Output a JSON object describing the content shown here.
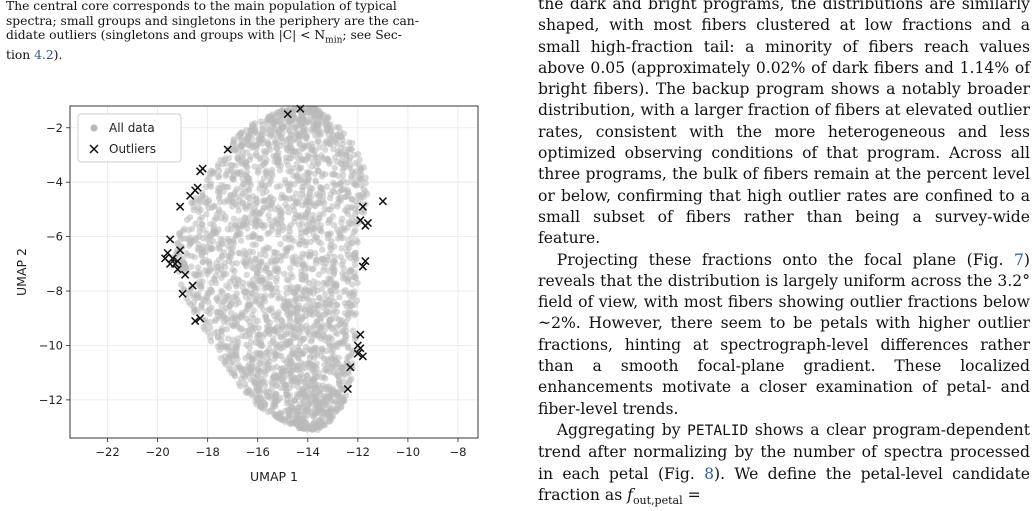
{
  "caption": {
    "line1": "The central core corresponds to the main population of typical",
    "line2": "spectra; small groups and singletons in the periphery are the can-",
    "line3": "didate outliers (singletons and groups with |C| < N",
    "line3_sub": "min",
    "line3_tail": "; see Sec-",
    "line4_pre": "tion ",
    "line4_ref": "4.2",
    "line4_post": ")."
  },
  "body": {
    "p1": "the dark and bright programs, the distributions are similarly shaped, with most fibers clustered at low fractions and a small high-fraction tail: a minority of fibers reach values above 0.05 (approximately 0.02% of dark fibers and 1.14% of bright fibers). The backup program shows a notably broader distribution, with a larger fraction of fibers at elevated outlier rates, consistent with the more heterogeneous and less optimized observing conditions of that program. Across all three programs, the bulk of fibers remain at the percent level or below, confirming that high outlier rates are confined to a small subset of fibers rather than being a survey-wide feature.",
    "p2_a": "Projecting these fractions onto the focal plane (Fig. ",
    "p2_ref": "7",
    "p2_b": ") reveals that the distribution is largely uniform across the 3.2° field of view, with most fibers showing outlier fractions below ~2%. However, there seem to be petals with higher outlier fractions, hinting at spectrograph-level differences rather than a smooth focal-plane gradient. These localized enhancements motivate a closer examination of petal- and fiber-level trends.",
    "p3_a": "Aggregating by ",
    "p3_mono": "PETALID",
    "p3_b": " shows a clear program-dependent trend after normalizing by the number of spectra processed in each petal (Fig. ",
    "p3_ref": "8",
    "p3_c": "). We define the petal-level candidate fraction as ",
    "p3_math": "f",
    "p3_math_sub": "out,petal",
    "p3_d": " ="
  },
  "chart_data": {
    "type": "scatter",
    "xlabel": "UMAP 1",
    "ylabel": "UMAP 2",
    "xlim": [
      -23.5,
      -7.2
    ],
    "ylim": [
      -13.4,
      -1.2
    ],
    "xticks": [
      -22,
      -20,
      -18,
      -16,
      -14,
      -12,
      -10,
      -8
    ],
    "yticks": [
      -2,
      -4,
      -6,
      -8,
      -10,
      -12
    ],
    "grid": true,
    "legend_position": "top-left",
    "series": [
      {
        "name": "All data",
        "marker": "circle",
        "color": "#b9b9b9",
        "region": "dense kidney-shaped cloud spanning x≈-19.5 to -11.3, y≈-13.0 to -1.2"
      },
      {
        "name": "Outliers",
        "marker": "x",
        "color": "#111111",
        "x": [
          -14.8,
          -14.3,
          -17.2,
          -18.2,
          -18.3,
          -18.4,
          -18.5,
          -18.7,
          -19.1,
          -19.5,
          -19.6,
          -19.4,
          -19.7,
          -19.5,
          -19.2,
          -19.3,
          -19.1,
          -19.2,
          -18.9,
          -19.0,
          -18.6,
          -18.5,
          -18.3,
          -11.8,
          -11.9,
          -11.0,
          -11.6,
          -11.7,
          -11.7,
          -11.8,
          -11.9,
          -11.9,
          -11.8,
          -12.0,
          -12.0,
          -12.4,
          -12.3
        ],
        "y": [
          -1.5,
          -1.3,
          -2.8,
          -3.5,
          -3.6,
          -4.2,
          -4.3,
          -4.5,
          -4.9,
          -6.1,
          -6.6,
          -6.8,
          -6.8,
          -7.0,
          -6.9,
          -7.0,
          -6.5,
          -7.2,
          -7.4,
          -8.1,
          -7.8,
          -9.1,
          -9.0,
          -4.9,
          -5.4,
          -4.7,
          -5.5,
          -5.6,
          -6.9,
          -7.1,
          -9.6,
          -10.1,
          -10.4,
          -10.0,
          -10.3,
          -11.6,
          -10.8
        ]
      }
    ]
  }
}
